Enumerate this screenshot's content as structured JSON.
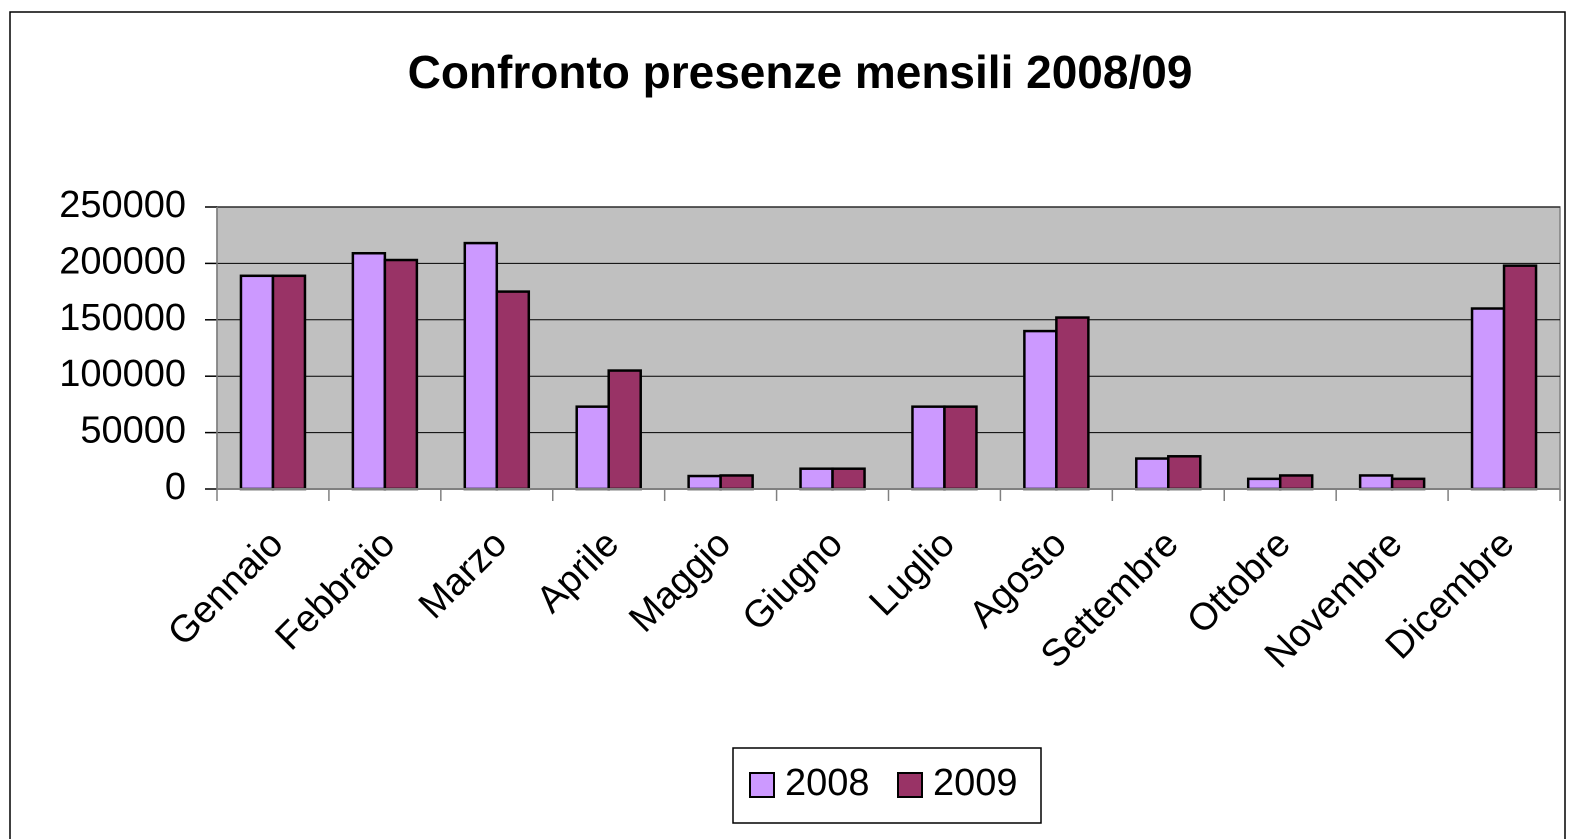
{
  "chart_data": {
    "type": "bar",
    "title": "Confronto presenze mensili 2008/09",
    "categories": [
      "Gennaio",
      "Febbraio",
      "Marzo",
      "Aprile",
      "Maggio",
      "Giugno",
      "Luglio",
      "Agosto",
      "Settembre",
      "Ottobre",
      "Novembre",
      "Dicembre"
    ],
    "series": [
      {
        "name": "2008",
        "color": "#cc99ff",
        "values": [
          189000,
          209000,
          218000,
          73000,
          11500,
          18000,
          73000,
          140000,
          27000,
          9000,
          12000,
          160000
        ]
      },
      {
        "name": "2009",
        "color": "#993366",
        "values": [
          189000,
          203000,
          175000,
          105000,
          12000,
          18000,
          73000,
          152000,
          29000,
          12000,
          9000,
          198000
        ]
      }
    ],
    "ylim": [
      0,
      250000
    ],
    "yticks": [
      0,
      50000,
      100000,
      150000,
      200000,
      250000
    ],
    "grid": true
  }
}
